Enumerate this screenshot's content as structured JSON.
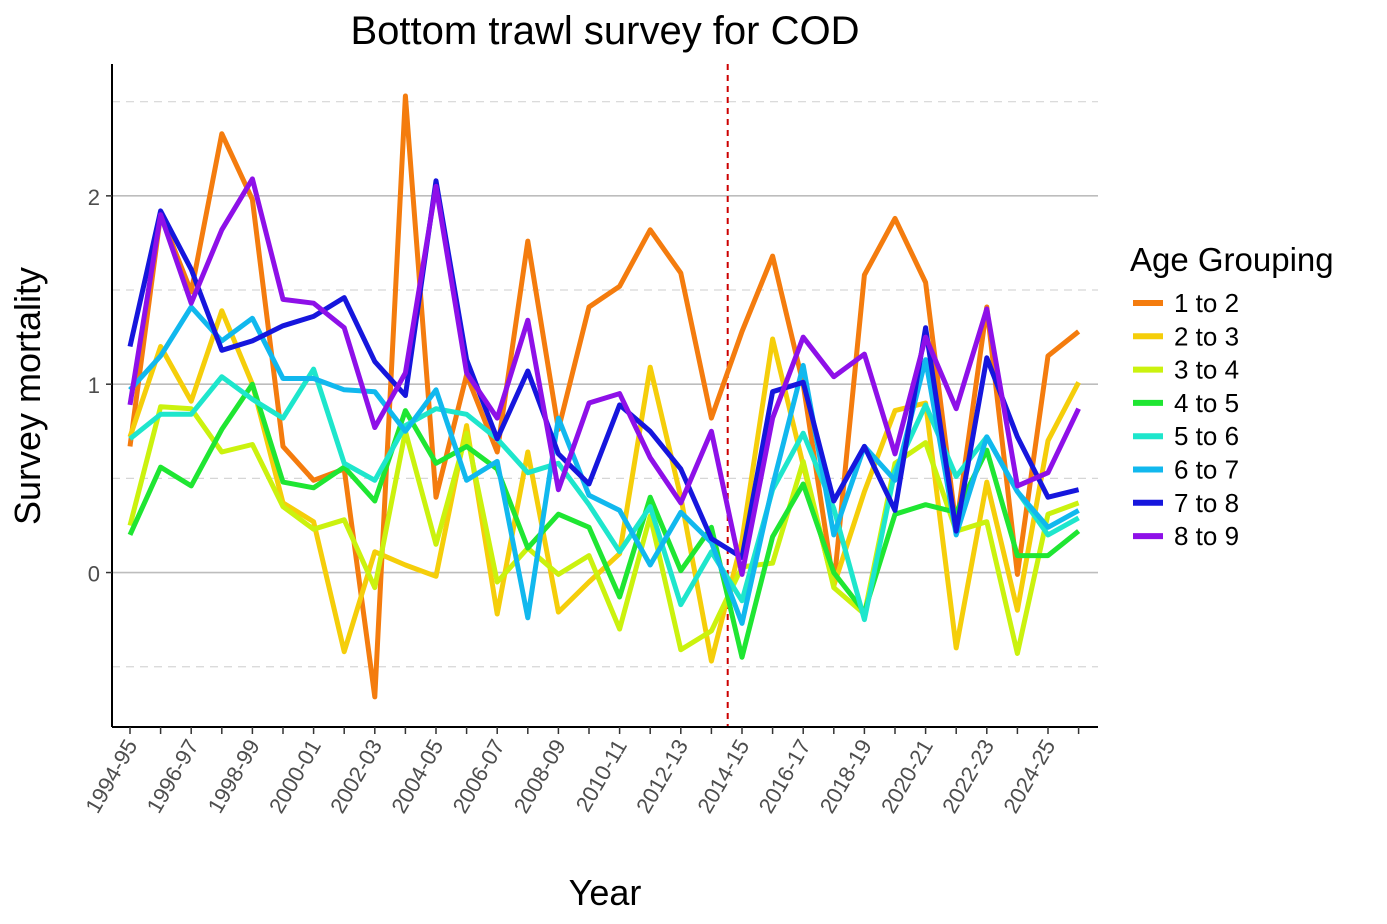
{
  "chart_data": {
    "type": "line",
    "title": "Bottom trawl survey for COD",
    "xlabel": "Year",
    "ylabel": "Survey mortality",
    "ylim": [
      -0.82,
      2.7
    ],
    "yticks": [
      0,
      1,
      2
    ],
    "grid": "horizontal dashed",
    "legend_position": "right",
    "legend_title": "Age Grouping",
    "x": [
      "1994-95",
      "1995-96",
      "1996-97",
      "1997-98",
      "1998-99",
      "1999-00",
      "2000-01",
      "2001-02",
      "2002-03",
      "2003-04",
      "2004-05",
      "2005-06",
      "2006-07",
      "2007-08",
      "2008-09",
      "2009-10",
      "2010-11",
      "2011-12",
      "2012-13",
      "2013-14",
      "2014-15",
      "2015-16",
      "2016-17",
      "2017-18",
      "2018-19",
      "2019-20",
      "2020-21",
      "2021-22",
      "2022-23",
      "2023-24",
      "2024-25",
      "2025-26"
    ],
    "x_tick_labels": [
      "1994-95",
      "1996-97",
      "1998-99",
      "2000-01",
      "2002-03",
      "2004-05",
      "2006-07",
      "2008-09",
      "2010-11",
      "2012-13",
      "2014-15",
      "2016-17",
      "2018-19",
      "2020-21",
      "2022-23",
      "2024-25"
    ],
    "vertical_reference_line": {
      "x": "2013-14",
      "style": "dashed",
      "color": "#cc0000"
    },
    "series": [
      {
        "name": "1 to 2",
        "color": "#f47c0e",
        "values": [
          0.67,
          1.9,
          1.49,
          2.33,
          1.98,
          0.67,
          0.49,
          0.55,
          -0.66,
          2.53,
          0.4,
          1.05,
          0.64,
          1.76,
          0.76,
          1.41,
          1.52,
          1.82,
          1.59,
          0.82,
          1.28,
          1.68,
          1.0,
          -0.07,
          1.58,
          1.88,
          1.54,
          0.24,
          1.41,
          -0.01,
          1.15,
          1.28
        ]
      },
      {
        "name": "2 to 3",
        "color": "#f5ce0a",
        "values": [
          0.72,
          1.2,
          0.91,
          1.39,
          1.0,
          0.37,
          0.27,
          -0.42,
          0.11,
          0.04,
          -0.02,
          0.78,
          -0.22,
          0.64,
          -0.21,
          -0.05,
          0.1,
          1.09,
          0.4,
          -0.47,
          0.17,
          1.24,
          0.57,
          -0.07,
          0.43,
          0.86,
          0.9,
          -0.4,
          0.48,
          -0.2,
          0.7,
          1.01
        ]
      },
      {
        "name": "3 to 4",
        "color": "#cbf20e",
        "values": [
          0.25,
          0.88,
          0.87,
          0.64,
          0.68,
          0.35,
          0.23,
          0.28,
          -0.08,
          0.75,
          0.15,
          0.74,
          -0.05,
          0.13,
          -0.01,
          0.09,
          -0.3,
          0.3,
          -0.41,
          -0.31,
          0.03,
          0.05,
          0.59,
          -0.08,
          -0.22,
          0.58,
          0.69,
          0.22,
          0.27,
          -0.43,
          0.31,
          0.37
        ]
      },
      {
        "name": "4 to 5",
        "color": "#1fe632",
        "values": [
          0.2,
          0.56,
          0.46,
          0.76,
          1.0,
          0.48,
          0.45,
          0.56,
          0.38,
          0.86,
          0.58,
          0.67,
          0.55,
          0.13,
          0.31,
          0.24,
          -0.13,
          0.4,
          0.01,
          0.24,
          -0.45,
          0.19,
          0.47,
          0.0,
          -0.21,
          0.31,
          0.36,
          0.32,
          0.65,
          0.09,
          0.09,
          0.22
        ]
      },
      {
        "name": "5 to 6",
        "color": "#1ee6cc",
        "values": [
          0.71,
          0.84,
          0.84,
          1.04,
          0.92,
          0.82,
          1.08,
          0.58,
          0.49,
          0.78,
          0.87,
          0.84,
          0.71,
          0.53,
          0.58,
          0.36,
          0.11,
          0.35,
          -0.17,
          0.11,
          -0.15,
          0.44,
          0.74,
          0.34,
          -0.25,
          0.54,
          0.89,
          0.51,
          0.72,
          0.43,
          0.2,
          0.29
        ]
      },
      {
        "name": "6 to 7",
        "color": "#11b8ee",
        "values": [
          0.97,
          1.15,
          1.41,
          1.23,
          1.35,
          1.03,
          1.03,
          0.97,
          0.96,
          0.75,
          0.97,
          0.49,
          0.59,
          -0.24,
          0.82,
          0.41,
          0.33,
          0.04,
          0.32,
          0.16,
          -0.27,
          0.46,
          1.1,
          0.2,
          0.67,
          0.49,
          1.13,
          0.2,
          0.72,
          0.43,
          0.24,
          0.33
        ]
      },
      {
        "name": "7 to 8",
        "color": "#1616dd",
        "values": [
          1.2,
          1.92,
          1.61,
          1.18,
          1.23,
          1.31,
          1.36,
          1.46,
          1.12,
          0.94,
          2.08,
          1.13,
          0.71,
          1.07,
          0.63,
          0.47,
          0.89,
          0.75,
          0.55,
          0.18,
          0.08,
          0.96,
          1.01,
          0.38,
          0.67,
          0.33,
          1.3,
          0.22,
          1.14,
          0.72,
          0.4,
          0.44
        ]
      },
      {
        "name": "8 to 9",
        "color": "#8e10e8",
        "values": [
          0.89,
          1.9,
          1.43,
          1.82,
          2.09,
          1.45,
          1.43,
          1.3,
          0.77,
          1.06,
          2.05,
          1.06,
          0.82,
          1.34,
          0.44,
          0.9,
          0.95,
          0.61,
          0.37,
          0.75,
          -0.01,
          0.82,
          1.25,
          1.04,
          1.16,
          0.63,
          1.25,
          0.87,
          1.4,
          0.46,
          0.53,
          0.87
        ]
      }
    ]
  }
}
